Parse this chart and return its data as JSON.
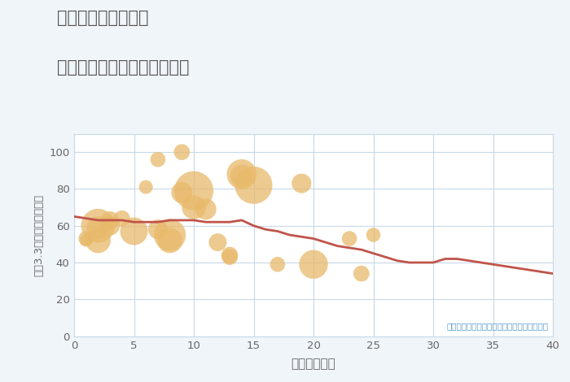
{
  "title_line1": "三重県松阪市乙部町",
  "title_line2": "築年数別中古マンション価格",
  "xlabel": "築年数（年）",
  "ylabel": "平（3.3㎡）単価（万円）",
  "annotation": "円の大きさは、取引のあった物件面積を示す",
  "background_color": "#f0f5fa",
  "plot_bg_color": "#ffffff",
  "grid_color": "#c8d8e8",
  "title_color": "#555555",
  "line_color": "#c0544a",
  "bubble_color": "#e8b96a",
  "bubble_alpha": 0.75,
  "xlim": [
    0,
    40
  ],
  "ylim": [
    0,
    110
  ],
  "xticks": [
    0,
    5,
    10,
    15,
    20,
    25,
    30,
    35,
    40
  ],
  "yticks": [
    0,
    20,
    40,
    60,
    80,
    100
  ],
  "scatter_x": [
    1,
    1,
    2,
    2,
    2,
    3,
    3,
    4,
    5,
    6,
    7,
    7,
    8,
    8,
    9,
    9,
    10,
    10,
    11,
    12,
    13,
    13,
    14,
    14,
    15,
    17,
    19,
    20,
    23,
    24,
    25
  ],
  "scatter_y": [
    53,
    52,
    60,
    59,
    52,
    63,
    60,
    64,
    57,
    81,
    96,
    58,
    55,
    52,
    100,
    78,
    79,
    70,
    69,
    51,
    44,
    43,
    88,
    87,
    82,
    39,
    83,
    39,
    53,
    34,
    55
  ],
  "scatter_s": [
    180,
    120,
    900,
    400,
    500,
    250,
    300,
    200,
    600,
    150,
    180,
    300,
    800,
    500,
    200,
    350,
    1200,
    450,
    350,
    250,
    220,
    200,
    700,
    400,
    1100,
    180,
    300,
    650,
    180,
    200,
    160
  ],
  "line_x": [
    0,
    1,
    2,
    3,
    4,
    5,
    6,
    7,
    8,
    9,
    10,
    11,
    12,
    13,
    14,
    15,
    16,
    17,
    18,
    19,
    20,
    21,
    22,
    23,
    24,
    25,
    26,
    27,
    28,
    29,
    30,
    31,
    32,
    33,
    34,
    35,
    36,
    37,
    38,
    39,
    40
  ],
  "line_y": [
    65,
    64,
    63,
    63,
    63,
    62,
    62,
    62,
    63,
    63,
    63,
    62,
    62,
    62,
    63,
    60,
    58,
    57,
    55,
    54,
    53,
    51,
    49,
    48,
    47,
    45,
    43,
    41,
    40,
    40,
    40,
    42,
    42,
    41,
    40,
    39,
    38,
    37,
    36,
    35,
    34
  ],
  "annotation_color": "#5599cc",
  "tick_label_color": "#666666"
}
